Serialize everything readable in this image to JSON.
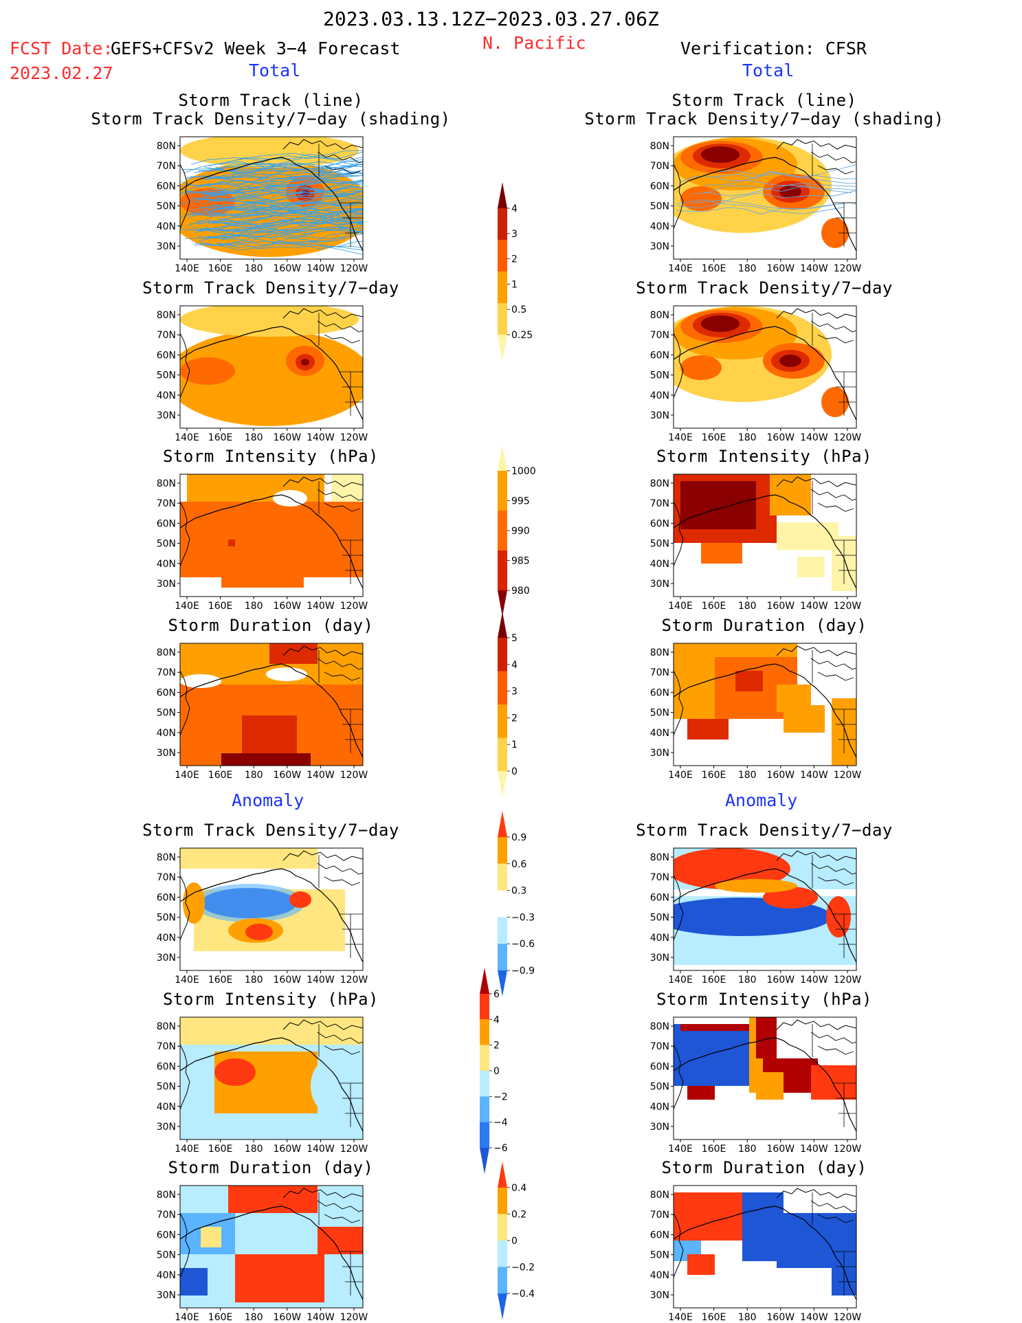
{
  "header": {
    "date_range": "2023.03.13.12Z−2023.03.27.06Z",
    "fcst_date_label": "FCST Date:",
    "fcst_date": "2023.02.27",
    "model": "GEFS+CFSv2 Week 3−4 Forecast",
    "region": "N. Pacific",
    "verification": "Verification: CFSR",
    "colors": {
      "red": "#ff2a2a",
      "blue": "#1a33ff"
    }
  },
  "sections": {
    "total": "Total",
    "anomaly": "Anomaly"
  },
  "panel_titles": {
    "track_line": "Storm Track (line)",
    "track_shading": "Storm Track Density/7−day (shading)",
    "density": "Storm Track Density/7−day",
    "intensity": "Storm Intensity (hPa)",
    "duration": "Storm Duration (day)"
  },
  "axes": {
    "lon_ticks": [
      "140E",
      "160E",
      "180",
      "160W",
      "140W",
      "120W"
    ],
    "lat_ticks": [
      "80N",
      "70N",
      "60N",
      "50N",
      "40N",
      "30N"
    ]
  },
  "colorbars": [
    {
      "name": "density-total",
      "labels": [
        "4",
        "3",
        "2",
        "1",
        "0.5",
        "0.25"
      ],
      "colors": [
        "#7a0000",
        "#cc2200",
        "#ff5a00",
        "#ffa000",
        "#ffd24a",
        "#fff4a8"
      ]
    },
    {
      "name": "intensity-total",
      "labels": [
        "1000",
        "995",
        "990",
        "985",
        "980"
      ],
      "colors": [
        "#fff4a8",
        "#ffa000",
        "#ff6a00",
        "#dd2200",
        "#8a0000"
      ]
    },
    {
      "name": "duration-total",
      "labels": [
        "5",
        "4",
        "3",
        "2",
        "1",
        "0"
      ],
      "colors": [
        "#7a0000",
        "#d02000",
        "#ff5a00",
        "#ffa000",
        "#ffd24a",
        "#fff4a8"
      ]
    },
    {
      "name": "density-anomaly",
      "labels": [
        "0.9",
        "0.6",
        "0.3",
        "−0.3",
        "−0.6",
        "−0.9"
      ],
      "colors": [
        "#ff3a10",
        "#ffa000",
        "#ffe680",
        "#ffffff",
        "#b8ecff",
        "#5ab4ff",
        "#1e64e6"
      ]
    },
    {
      "name": "intensity-anomaly",
      "labels": [
        "6",
        "4",
        "2",
        "0",
        "−2",
        "−4",
        "−6"
      ],
      "colors": [
        "#b00000",
        "#ff3a10",
        "#ffa000",
        "#ffe680",
        "#b8ecff",
        "#5ab4ff",
        "#2a7af0",
        "#1e56d6"
      ]
    },
    {
      "name": "duration-anomaly",
      "labels": [
        "0.4",
        "0.2",
        "0",
        "−0.2",
        "−0.4"
      ],
      "colors": [
        "#ff3a10",
        "#ffa000",
        "#ffe680",
        "#b8ecff",
        "#5ab4ff",
        "#1e64e6"
      ]
    }
  ],
  "chart_data": [
    {
      "type": "heatmap",
      "panel": "forecast-total-storm-track",
      "title": "Storm Track (line) / Storm Track Density/7−day (shading)",
      "xlim": [
        "140E",
        "110W"
      ],
      "ylim": [
        "25N",
        "85N"
      ]
    },
    {
      "type": "heatmap",
      "panel": "forecast-total-density",
      "title": "Storm Track Density/7−day"
    },
    {
      "type": "heatmap",
      "panel": "forecast-total-intensity",
      "title": "Storm Intensity (hPa)"
    },
    {
      "type": "heatmap",
      "panel": "forecast-total-duration",
      "title": "Storm Duration (day)"
    },
    {
      "type": "heatmap",
      "panel": "forecast-anomaly-density",
      "title": "Storm Track Density/7−day"
    },
    {
      "type": "heatmap",
      "panel": "forecast-anomaly-intensity",
      "title": "Storm Intensity (hPa)"
    },
    {
      "type": "heatmap",
      "panel": "forecast-anomaly-duration",
      "title": "Storm Duration (day)"
    },
    {
      "type": "heatmap",
      "panel": "verification-total-storm-track",
      "title": "Storm Track (line) / Storm Track Density/7−day (shading)"
    },
    {
      "type": "heatmap",
      "panel": "verification-total-density",
      "title": "Storm Track Density/7−day"
    },
    {
      "type": "heatmap",
      "panel": "verification-total-intensity",
      "title": "Storm Intensity (hPa)"
    },
    {
      "type": "heatmap",
      "panel": "verification-total-duration",
      "title": "Storm Duration (day)"
    },
    {
      "type": "heatmap",
      "panel": "verification-anomaly-density",
      "title": "Storm Track Density/7−day"
    },
    {
      "type": "heatmap",
      "panel": "verification-anomaly-intensity",
      "title": "Storm Intensity (hPa)"
    },
    {
      "type": "heatmap",
      "panel": "verification-anomaly-duration",
      "title": "Storm Duration (day)"
    }
  ]
}
